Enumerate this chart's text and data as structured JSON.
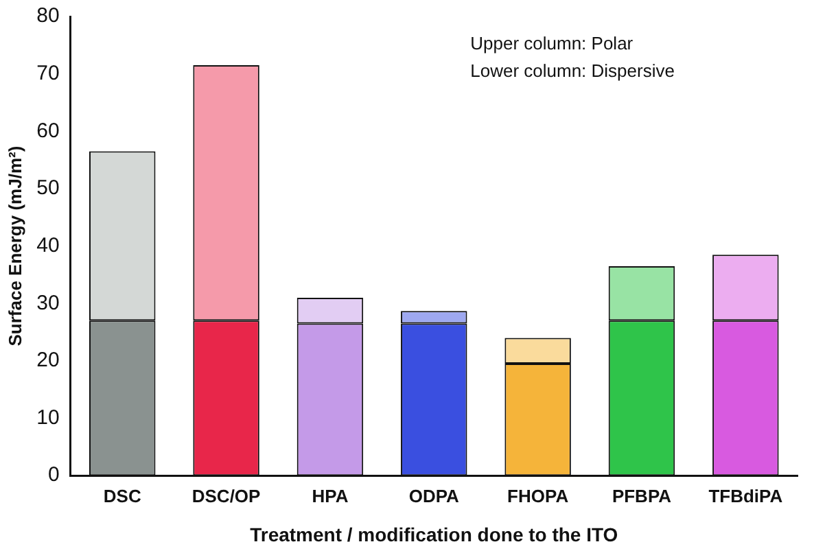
{
  "chart_data": {
    "type": "bar",
    "stacked": true,
    "xlabel": "Treatment / modification done to the ITO",
    "ylabel": "Surface Energy (mJ/m²)",
    "categories": [
      "DSC",
      "DSC/OP",
      "HPA",
      "ODPA",
      "FHOPA",
      "PFBPA",
      "TFBdiPA"
    ],
    "series": [
      {
        "colors": [
          "#8a9290",
          "#e8264a",
          "#c49ae8",
          "#3a4fe0",
          "#f5b43a",
          "#2fc44a",
          "#d85ae0"
        ],
        "values": [
          27,
          27,
          26.5,
          26.5,
          19.5,
          27,
          27
        ]
      },
      {
        "colors": [
          "#d4d8d6",
          "#f59aaa",
          "#e2cdf3",
          "#9ea8f0",
          "#fadb9c",
          "#98e3a4",
          "#ecadf0"
        ],
        "values": [
          29.5,
          44.5,
          4.5,
          2.2,
          4.5,
          9.5,
          11.5
        ]
      }
    ],
    "ylim": [
      0,
      80
    ],
    "yticks": [
      0,
      10,
      20,
      30,
      40,
      50,
      60,
      70,
      80
    ],
    "grid": false,
    "legend": false,
    "annotations": [
      "Upper column: Polar",
      "Lower column: Dispersive"
    ]
  }
}
